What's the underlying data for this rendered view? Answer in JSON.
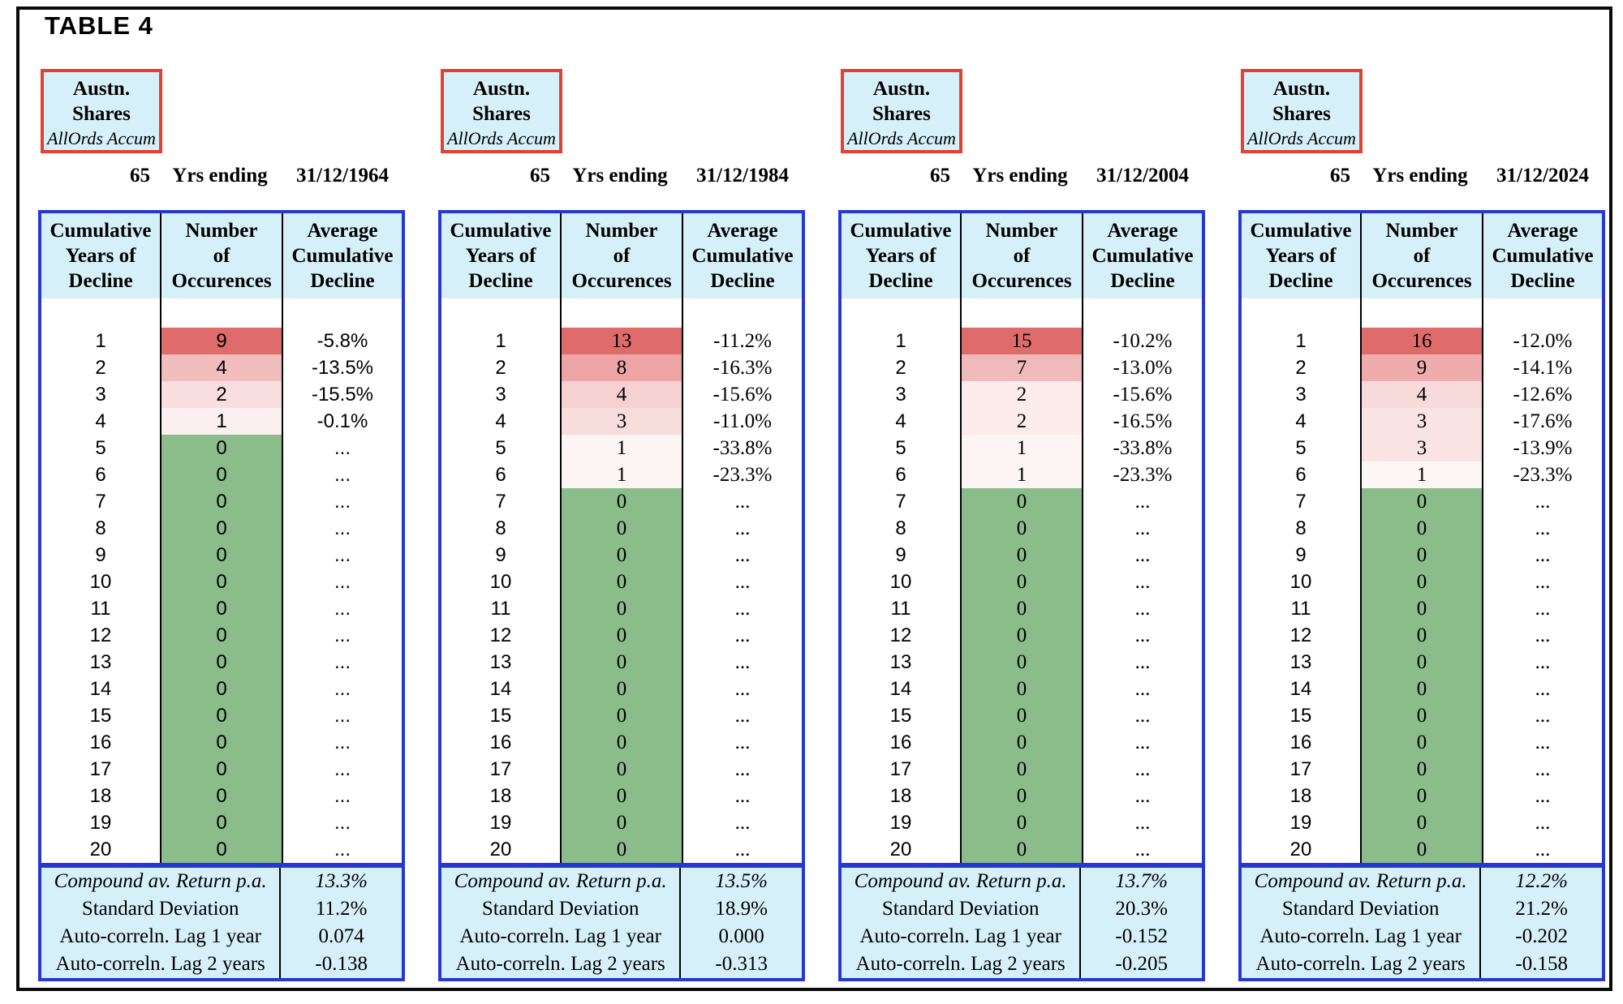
{
  "page": {
    "title": "TABLE 4"
  },
  "colors": {
    "panel_bg": "#FFFFFF",
    "cyan_bg": "#D5F0F8",
    "table_border_blue": "#2737D2",
    "asset_box_border_red": "#E4402E",
    "occurrence_red_max": "#E06B6B",
    "occurrence_zero_green": "#8ABD8A",
    "grid_black": "#000000"
  },
  "asset_box": {
    "name_line1": "Austn.",
    "name_line2": "Shares",
    "index_label": "AllOrds Accum"
  },
  "period_row": {
    "years": "65",
    "label": "Yrs ending"
  },
  "column_headers": [
    [
      "Cumulative",
      "Years of",
      "Decline"
    ],
    [
      "Number",
      "of",
      "Occurences"
    ],
    [
      "Average",
      "Cumulative",
      "Decline"
    ]
  ],
  "panels": [
    {
      "end_date": "31/12/1964",
      "number_font": "sans",
      "rows": [
        {
          "years": "1",
          "occurrences": "9",
          "decline": "-5.8%"
        },
        {
          "years": "2",
          "occurrences": "4",
          "decline": "-13.5%"
        },
        {
          "years": "3",
          "occurrences": "2",
          "decline": "-15.5%"
        },
        {
          "years": "4",
          "occurrences": "1",
          "decline": "-0.1%"
        },
        {
          "years": "5",
          "occurrences": "0",
          "decline": "..."
        },
        {
          "years": "6",
          "occurrences": "0",
          "decline": "..."
        },
        {
          "years": "7",
          "occurrences": "0",
          "decline": "..."
        },
        {
          "years": "8",
          "occurrences": "0",
          "decline": "..."
        },
        {
          "years": "9",
          "occurrences": "0",
          "decline": "..."
        },
        {
          "years": "10",
          "occurrences": "0",
          "decline": "..."
        },
        {
          "years": "11",
          "occurrences": "0",
          "decline": "..."
        },
        {
          "years": "12",
          "occurrences": "0",
          "decline": "..."
        },
        {
          "years": "13",
          "occurrences": "0",
          "decline": "..."
        },
        {
          "years": "14",
          "occurrences": "0",
          "decline": "..."
        },
        {
          "years": "15",
          "occurrences": "0",
          "decline": "..."
        },
        {
          "years": "16",
          "occurrences": "0",
          "decline": "..."
        },
        {
          "years": "17",
          "occurrences": "0",
          "decline": "..."
        },
        {
          "years": "18",
          "occurrences": "0",
          "decline": "..."
        },
        {
          "years": "19",
          "occurrences": "0",
          "decline": "..."
        },
        {
          "years": "20",
          "occurrences": "0",
          "decline": "..."
        }
      ],
      "summary": [
        {
          "label": "Compound av. Return p.a.",
          "value": "13.3%",
          "italic": true
        },
        {
          "label": "Standard Deviation",
          "value": "11.2%",
          "italic": false
        },
        {
          "label": "Auto-correln. Lag 1 year",
          "value": "0.074",
          "italic": false
        },
        {
          "label": "Auto-correln. Lag 2 years",
          "value": "-0.138",
          "italic": false
        }
      ]
    },
    {
      "end_date": "31/12/1984",
      "number_font": "serif",
      "rows": [
        {
          "years": "1",
          "occurrences": "13",
          "decline": "-11.2%"
        },
        {
          "years": "2",
          "occurrences": "8",
          "decline": "-16.3%"
        },
        {
          "years": "3",
          "occurrences": "4",
          "decline": "-15.6%"
        },
        {
          "years": "4",
          "occurrences": "3",
          "decline": "-11.0%"
        },
        {
          "years": "5",
          "occurrences": "1",
          "decline": "-33.8%"
        },
        {
          "years": "6",
          "occurrences": "1",
          "decline": "-23.3%"
        },
        {
          "years": "7",
          "occurrences": "0",
          "decline": "..."
        },
        {
          "years": "8",
          "occurrences": "0",
          "decline": "..."
        },
        {
          "years": "9",
          "occurrences": "0",
          "decline": "..."
        },
        {
          "years": "10",
          "occurrences": "0",
          "decline": "..."
        },
        {
          "years": "11",
          "occurrences": "0",
          "decline": "..."
        },
        {
          "years": "12",
          "occurrences": "0",
          "decline": "..."
        },
        {
          "years": "13",
          "occurrences": "0",
          "decline": "..."
        },
        {
          "years": "14",
          "occurrences": "0",
          "decline": "..."
        },
        {
          "years": "15",
          "occurrences": "0",
          "decline": "..."
        },
        {
          "years": "16",
          "occurrences": "0",
          "decline": "..."
        },
        {
          "years": "17",
          "occurrences": "0",
          "decline": "..."
        },
        {
          "years": "18",
          "occurrences": "0",
          "decline": "..."
        },
        {
          "years": "19",
          "occurrences": "0",
          "decline": "..."
        },
        {
          "years": "20",
          "occurrences": "0",
          "decline": "..."
        }
      ],
      "summary": [
        {
          "label": "Compound av. Return p.a.",
          "value": "13.5%",
          "italic": true
        },
        {
          "label": "Standard Deviation",
          "value": "18.9%",
          "italic": false
        },
        {
          "label": "Auto-correln. Lag 1 year",
          "value": "0.000",
          "italic": false
        },
        {
          "label": "Auto-correln. Lag 2 years",
          "value": "-0.313",
          "italic": false
        }
      ]
    },
    {
      "end_date": "31/12/2004",
      "number_font": "serif",
      "rows": [
        {
          "years": "1",
          "occurrences": "15",
          "decline": "-10.2%"
        },
        {
          "years": "2",
          "occurrences": "7",
          "decline": "-13.0%"
        },
        {
          "years": "3",
          "occurrences": "2",
          "decline": "-15.6%"
        },
        {
          "years": "4",
          "occurrences": "2",
          "decline": "-16.5%"
        },
        {
          "years": "5",
          "occurrences": "1",
          "decline": "-33.8%"
        },
        {
          "years": "6",
          "occurrences": "1",
          "decline": "-23.3%"
        },
        {
          "years": "7",
          "occurrences": "0",
          "decline": "..."
        },
        {
          "years": "8",
          "occurrences": "0",
          "decline": "..."
        },
        {
          "years": "9",
          "occurrences": "0",
          "decline": "..."
        },
        {
          "years": "10",
          "occurrences": "0",
          "decline": "..."
        },
        {
          "years": "11",
          "occurrences": "0",
          "decline": "..."
        },
        {
          "years": "12",
          "occurrences": "0",
          "decline": "..."
        },
        {
          "years": "13",
          "occurrences": "0",
          "decline": "..."
        },
        {
          "years": "14",
          "occurrences": "0",
          "decline": "..."
        },
        {
          "years": "15",
          "occurrences": "0",
          "decline": "..."
        },
        {
          "years": "16",
          "occurrences": "0",
          "decline": "..."
        },
        {
          "years": "17",
          "occurrences": "0",
          "decline": "..."
        },
        {
          "years": "18",
          "occurrences": "0",
          "decline": "..."
        },
        {
          "years": "19",
          "occurrences": "0",
          "decline": "..."
        },
        {
          "years": "20",
          "occurrences": "0",
          "decline": "..."
        }
      ],
      "summary": [
        {
          "label": "Compound av. Return p.a.",
          "value": "13.7%",
          "italic": true
        },
        {
          "label": "Standard Deviation",
          "value": "20.3%",
          "italic": false
        },
        {
          "label": "Auto-correln. Lag 1 year",
          "value": "-0.152",
          "italic": false
        },
        {
          "label": "Auto-correln. Lag 2 years",
          "value": "-0.205",
          "italic": false
        }
      ]
    },
    {
      "end_date": "31/12/2024",
      "number_font": "serif",
      "rows": [
        {
          "years": "1",
          "occurrences": "16",
          "decline": "-12.0%"
        },
        {
          "years": "2",
          "occurrences": "9",
          "decline": "-14.1%"
        },
        {
          "years": "3",
          "occurrences": "4",
          "decline": "-12.6%"
        },
        {
          "years": "4",
          "occurrences": "3",
          "decline": "-17.6%"
        },
        {
          "years": "5",
          "occurrences": "3",
          "decline": "-13.9%"
        },
        {
          "years": "6",
          "occurrences": "1",
          "decline": "-23.3%"
        },
        {
          "years": "7",
          "occurrences": "0",
          "decline": "..."
        },
        {
          "years": "8",
          "occurrences": "0",
          "decline": "..."
        },
        {
          "years": "9",
          "occurrences": "0",
          "decline": "..."
        },
        {
          "years": "10",
          "occurrences": "0",
          "decline": "..."
        },
        {
          "years": "11",
          "occurrences": "0",
          "decline": "..."
        },
        {
          "years": "12",
          "occurrences": "0",
          "decline": "..."
        },
        {
          "years": "13",
          "occurrences": "0",
          "decline": "..."
        },
        {
          "years": "14",
          "occurrences": "0",
          "decline": "..."
        },
        {
          "years": "15",
          "occurrences": "0",
          "decline": "..."
        },
        {
          "years": "16",
          "occurrences": "0",
          "decline": "..."
        },
        {
          "years": "17",
          "occurrences": "0",
          "decline": "..."
        },
        {
          "years": "18",
          "occurrences": "0",
          "decline": "..."
        },
        {
          "years": "19",
          "occurrences": "0",
          "decline": "..."
        },
        {
          "years": "20",
          "occurrences": "0",
          "decline": "..."
        }
      ],
      "summary": [
        {
          "label": "Compound av. Return p.a.",
          "value": "12.2%",
          "italic": true
        },
        {
          "label": "Standard Deviation",
          "value": "21.2%",
          "italic": false
        },
        {
          "label": "Auto-correln. Lag 1 year",
          "value": "-0.202",
          "italic": false
        },
        {
          "label": "Auto-correln. Lag 2 years",
          "value": "-0.158",
          "italic": false
        }
      ]
    }
  ]
}
